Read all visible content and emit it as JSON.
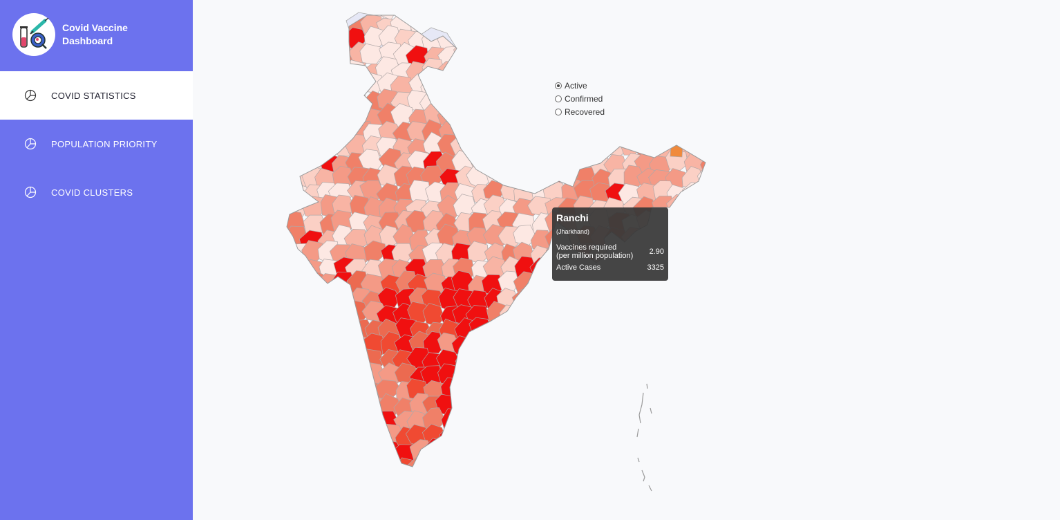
{
  "app": {
    "title": "Covid Vaccine Dashboard",
    "logo_icon": "vaccine-virus-logo-icon"
  },
  "colors": {
    "sidebar_bg": "#6c72ee",
    "active_nav_bg": "#ffffff",
    "map_low": "#fde8e3",
    "map_mid": "#f08068",
    "map_high": "#f01010",
    "map_highlight": "#f08a3c",
    "disputed_region": "#e6e8f6"
  },
  "sidebar": {
    "items": [
      {
        "label": "COVID STATISTICS",
        "icon": "pie-chart-icon",
        "active": true
      },
      {
        "label": "POPULATION PRIORITY",
        "icon": "pie-chart-icon",
        "active": false
      },
      {
        "label": "COVID CLUSTERS",
        "icon": "pie-chart-icon",
        "active": false
      }
    ]
  },
  "map_controls": {
    "options": [
      {
        "label": "Active",
        "checked": true
      },
      {
        "label": "Confirmed",
        "checked": false
      },
      {
        "label": "Recovered",
        "checked": false
      }
    ]
  },
  "tooltip": {
    "city": "Ranchi",
    "state": "(Jharkhand)",
    "vaccines_label_line1": "Vaccines required",
    "vaccines_label_line2": "(per million population)",
    "vaccines_value": "2.90",
    "active_label": "Active Cases",
    "active_value": "3325"
  }
}
